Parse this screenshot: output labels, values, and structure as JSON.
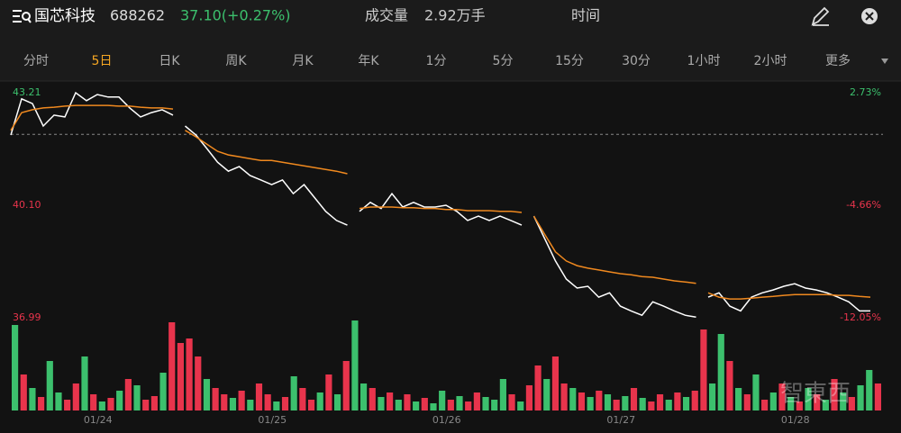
{
  "header": {
    "name": "国芯科技",
    "code": "688262",
    "price": "37.10(+0.27%)",
    "volume_label": "成交量",
    "volume": "2.92万手",
    "time_label": "时间"
  },
  "tabs": [
    "分时",
    "5日",
    "日K",
    "周K",
    "月K",
    "年K",
    "1分",
    "5分",
    "15分",
    "30分",
    "1小时",
    "2小时",
    "更多"
  ],
  "active_tab": 1,
  "watermark": "智東西",
  "chart_data": {
    "type": "line",
    "ylim": [
      36.99,
      43.21
    ],
    "yticks": [
      43.21,
      {
        "value": 40.1,
        "label": "40.10"
      },
      36.99
    ],
    "y2lim": [
      -12.05,
      2.73
    ],
    "y2ticks": [
      {
        "value": 2.73,
        "label": "2.73%"
      },
      {
        "value": -4.66,
        "label": "-4.66%"
      },
      {
        "value": -12.05,
        "label": "-12.05%"
      }
    ],
    "reference_line": 42.06,
    "up_color": "#3cc06d",
    "down_color": "#e8344c",
    "x_labels": [
      "01/24",
      "01/25",
      "01/26",
      "01/27",
      "01/28"
    ],
    "series": [
      {
        "color": "#ffffff",
        "values": [
          42.04,
          43.04,
          42.91,
          42.29,
          42.59,
          42.54,
          43.21,
          42.99,
          43.16,
          43.09,
          43.09,
          42.79,
          42.54,
          42.66,
          42.74,
          42.59,
          null,
          42.29,
          42.04,
          41.67,
          41.29,
          41.04,
          41.17,
          40.92,
          40.8,
          40.67,
          40.8,
          40.42,
          40.67,
          40.3,
          39.93,
          39.68,
          39.55,
          null,
          39.93,
          40.18,
          40.01,
          40.42,
          40.05,
          40.18,
          40.05,
          40.05,
          40.1,
          39.93,
          39.68,
          39.8,
          39.68,
          39.8,
          39.68,
          39.55,
          null,
          39.8,
          39.18,
          38.56,
          38.06,
          37.81,
          37.86,
          37.56,
          37.68,
          37.31,
          37.18,
          37.06,
          37.43,
          37.31,
          37.18,
          37.06,
          37.01,
          null,
          37.56,
          37.68,
          37.31,
          37.18,
          37.56,
          37.68,
          37.76,
          37.86,
          37.93,
          37.81,
          37.76,
          37.68,
          37.56,
          37.43,
          37.18,
          37.18
        ]
      },
      {
        "color": "#f0891f",
        "values": [
          42.17,
          42.66,
          42.74,
          42.79,
          42.81,
          42.84,
          42.86,
          42.86,
          42.86,
          42.86,
          42.84,
          42.84,
          42.81,
          42.79,
          42.79,
          42.76,
          null,
          42.17,
          41.99,
          41.79,
          41.59,
          41.49,
          41.44,
          41.39,
          41.34,
          41.34,
          41.29,
          41.24,
          41.19,
          41.14,
          41.09,
          41.04,
          40.97,
          null,
          40.01,
          40.05,
          40.05,
          40.05,
          40.03,
          40.03,
          40.01,
          40.01,
          39.98,
          39.98,
          39.95,
          39.95,
          39.95,
          39.93,
          39.93,
          39.9,
          null,
          39.8,
          39.3,
          38.81,
          38.56,
          38.43,
          38.36,
          38.31,
          38.26,
          38.21,
          38.18,
          38.13,
          38.11,
          38.06,
          38.01,
          37.98,
          37.94,
          null,
          37.68,
          37.56,
          37.51,
          37.51,
          37.53,
          37.56,
          37.58,
          37.61,
          37.63,
          37.63,
          37.63,
          37.63,
          37.61,
          37.61,
          37.58,
          37.56
        ]
      }
    ],
    "volume": {
      "values": [
        95,
        40,
        25,
        15,
        55,
        20,
        12,
        30,
        60,
        18,
        10,
        14,
        22,
        35,
        28,
        12,
        16,
        42,
        98,
        75,
        80,
        60,
        35,
        25,
        18,
        14,
        22,
        12,
        30,
        18,
        10,
        15,
        38,
        25,
        12,
        20,
        40,
        18,
        55,
        100,
        30,
        25,
        15,
        20,
        12,
        18,
        10,
        14,
        8,
        22,
        12,
        16,
        10,
        20,
        15,
        12,
        35,
        18,
        10,
        28,
        50,
        35,
        60,
        30,
        25,
        20,
        15,
        22,
        18,
        12,
        16,
        25,
        14,
        10,
        18,
        12,
        20,
        15,
        22,
        90,
        30,
        85,
        55,
        25,
        18,
        40,
        12,
        20,
        30,
        15,
        10,
        25,
        18,
        12,
        35,
        20,
        15,
        28,
        45,
        30
      ],
      "up": [
        true,
        false,
        true,
        false,
        true,
        true,
        false,
        false,
        true,
        false,
        true,
        false,
        true,
        false,
        true,
        false,
        false,
        true,
        false,
        false,
        false,
        false,
        true,
        false,
        false,
        true,
        false,
        true,
        false,
        false,
        true,
        false,
        true,
        false,
        false,
        true,
        false,
        true,
        false,
        true,
        true,
        false,
        true,
        false,
        true,
        false,
        true,
        false,
        true,
        true,
        false,
        true,
        false,
        false,
        true,
        true,
        true,
        false,
        true,
        false,
        false,
        true,
        false,
        false,
        true,
        false,
        true,
        false,
        true,
        false,
        true,
        false,
        true,
        false,
        false,
        true,
        false,
        true,
        false,
        false,
        true,
        true,
        false,
        true,
        false,
        true,
        false,
        true,
        false,
        true,
        false,
        true,
        false,
        true,
        false,
        true,
        false,
        true,
        true,
        false
      ]
    }
  }
}
